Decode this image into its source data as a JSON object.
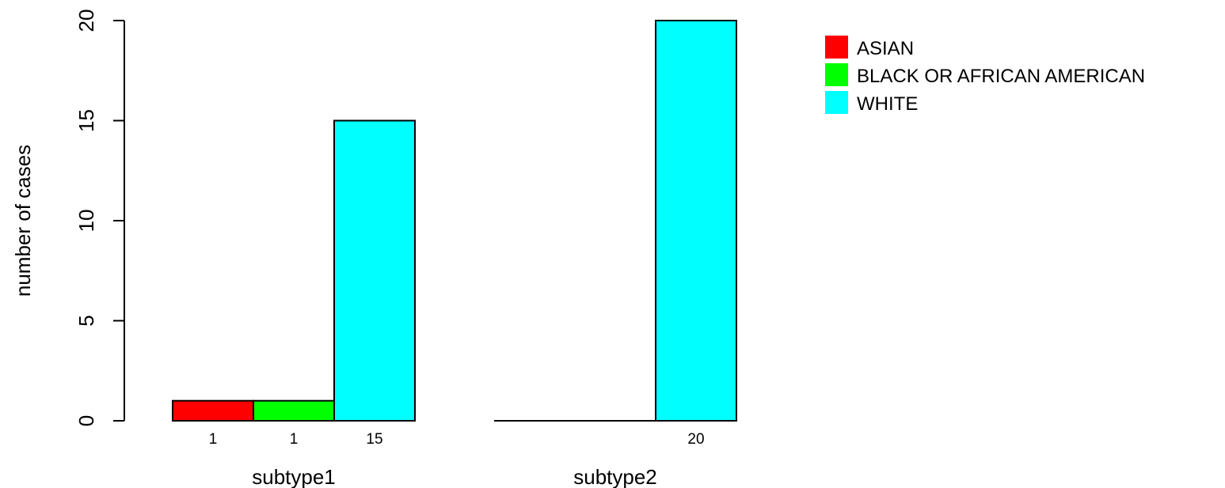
{
  "chart_data": {
    "type": "bar",
    "ylabel": "number of cases",
    "xlabel": "",
    "ylim": [
      0,
      20
    ],
    "yticks": [
      0,
      5,
      10,
      15,
      20
    ],
    "grid": false,
    "legend_position": "top-right",
    "groups": [
      "subtype1",
      "subtype2"
    ],
    "series": [
      {
        "name": "ASIAN",
        "color": "#ff0000",
        "values": [
          1,
          0
        ]
      },
      {
        "name": "BLACK OR AFRICAN AMERICAN",
        "color": "#00ff00",
        "values": [
          1,
          0
        ]
      },
      {
        "name": "WHITE",
        "color": "#00ffff",
        "values": [
          15,
          20
        ]
      }
    ],
    "bar_labels": [
      [
        "1",
        "1",
        "15"
      ],
      [
        "",
        "",
        "20"
      ]
    ]
  }
}
